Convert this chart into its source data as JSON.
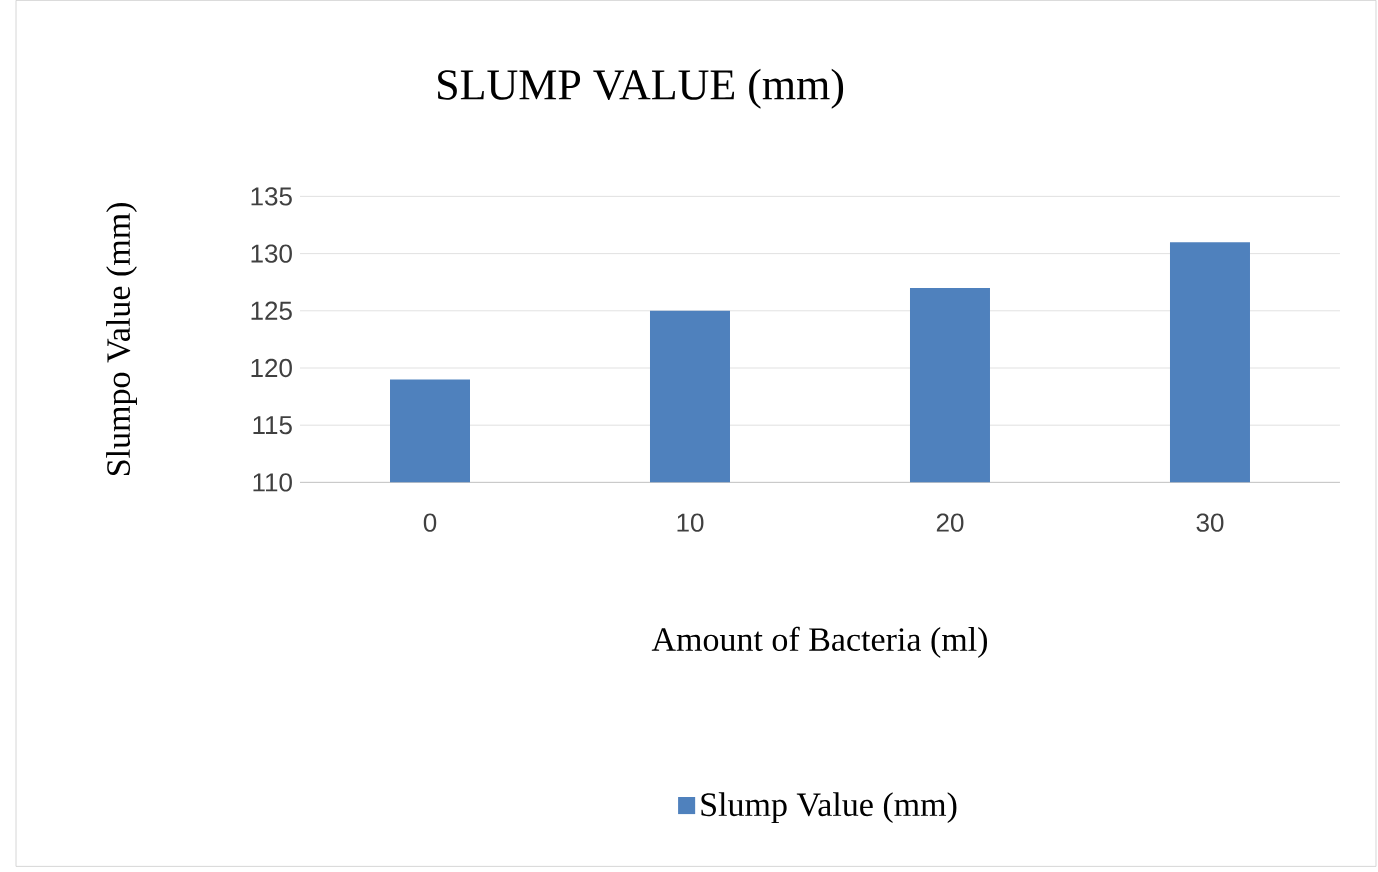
{
  "chart_data": {
    "type": "bar",
    "title": "SLUMP VALUE (mm)",
    "xlabel": "Amount of Bacteria (ml)",
    "ylabel": "Slumpo Value (mm)",
    "categories": [
      "0",
      "10",
      "20",
      "30"
    ],
    "series": [
      {
        "name": "Slump Value (mm)",
        "color": "#4f81bd",
        "values": [
          119,
          125,
          127,
          131
        ]
      }
    ],
    "ylim": [
      110,
      135
    ],
    "yticks": [
      110,
      115,
      120,
      125,
      130,
      135
    ],
    "grid": "y",
    "legend": "bottom"
  }
}
